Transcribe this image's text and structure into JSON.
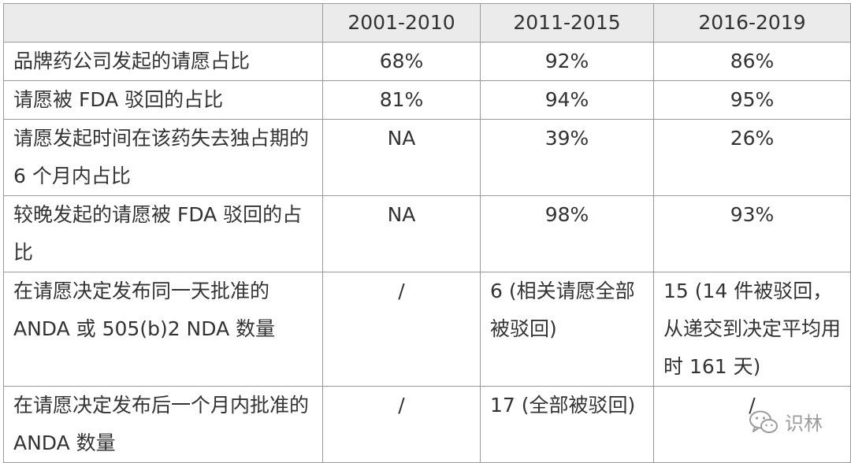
{
  "table": {
    "headers": [
      "",
      "2001-2010",
      "2011-2015",
      "2016-2019"
    ],
    "rows": [
      {
        "label": "品牌药公司发起的请愿占比",
        "values": [
          "68%",
          "92%",
          "86%"
        ]
      },
      {
        "label": "请愿被 FDA 驳回的占比",
        "values": [
          "81%",
          "94%",
          "95%"
        ]
      },
      {
        "label": "请愿发起时间在该药失去独占期的 6 个月内占比",
        "values": [
          "NA",
          "39%",
          "26%"
        ]
      },
      {
        "label": "较晚发起的请愿被 FDA 驳回的占比",
        "values": [
          "NA",
          "98%",
          "93%"
        ]
      },
      {
        "label": "在请愿决定发布同一天批准的 ANDA 或 505(b)2 NDA 数量",
        "values": [
          "/",
          "6 (相关请愿全部被驳回)",
          "15 (14 件被驳回，从递交到决定平均用时 161 天)"
        ]
      },
      {
        "label": "在请愿决定发布后一个月内批准的 ANDA 数量",
        "values": [
          "/",
          "17 (全部被驳回)",
          "/"
        ]
      }
    ]
  },
  "watermark": {
    "text": "识林",
    "icon": "wechat-icon"
  }
}
